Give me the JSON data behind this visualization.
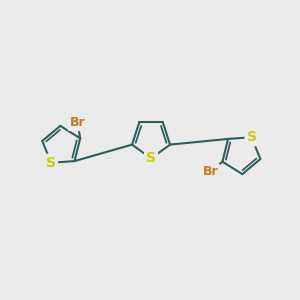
{
  "bg_color": "#ebebeb",
  "bond_color": "#2d5f5f",
  "bond_width": 1.5,
  "S_color": "#cccc00",
  "Br_color": "#c87820",
  "S_fontsize": 10,
  "Br_fontsize": 9,
  "xlim": [
    -2.6,
    3.0
  ],
  "ylim": [
    -1.3,
    1.3
  ]
}
